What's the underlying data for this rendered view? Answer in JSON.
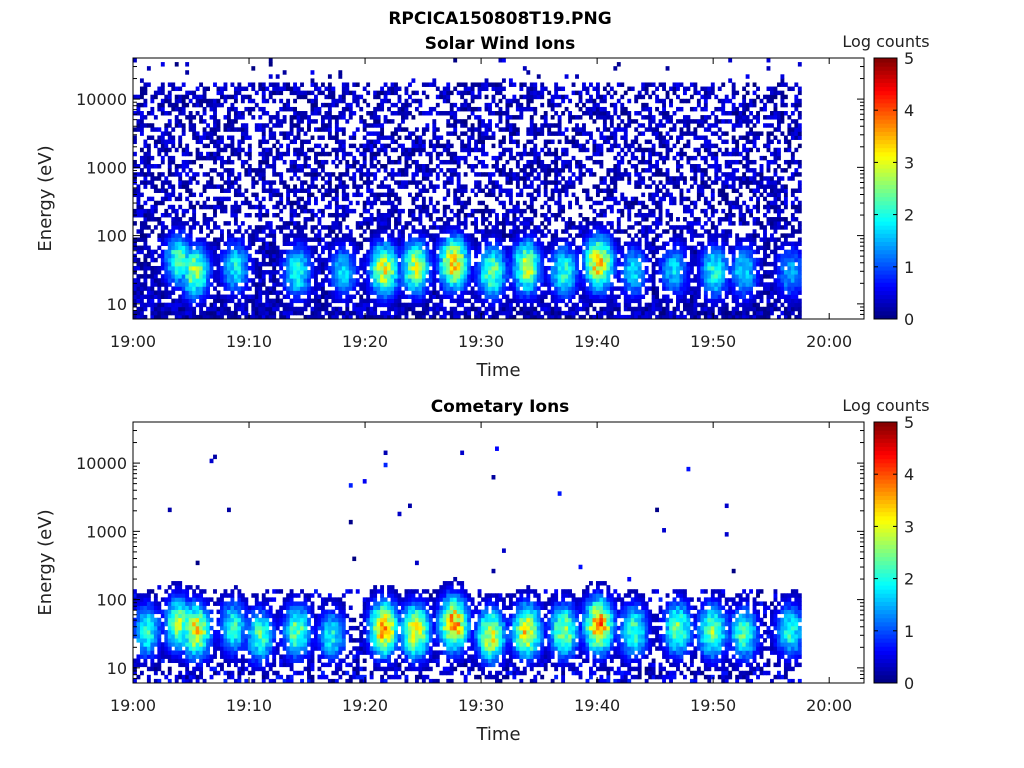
{
  "figure": {
    "title": "RPCICA150808T19.PNG"
  },
  "chart_data": [
    {
      "type": "heatmap",
      "title": "Solar Wind Ions",
      "xlabel": "Time",
      "ylabel": "Energy (eV)",
      "x_ticks": [
        "19:00",
        "19:10",
        "19:20",
        "19:30",
        "19:40",
        "19:50",
        "20:00"
      ],
      "x_range_minutes": [
        0,
        63
      ],
      "data_extent_minutes": [
        0,
        57.3
      ],
      "y_scale": "log",
      "y_ticks": [
        "10",
        "100",
        "1000",
        "10000"
      ],
      "y_range": [
        6,
        40000
      ],
      "colorbar": {
        "label": "Log counts",
        "ticks": [
          "0",
          "1",
          "2",
          "3",
          "4",
          "5"
        ],
        "range": [
          0,
          5
        ]
      },
      "colormap": "jet",
      "background_density": "high",
      "peaks": [
        {
          "t": 3.8,
          "e": 45,
          "v": 2.4
        },
        {
          "t": 5.2,
          "e": 30,
          "v": 2.8
        },
        {
          "t": 8.7,
          "e": 35,
          "v": 2.0
        },
        {
          "t": 14.0,
          "e": 30,
          "v": 2.2
        },
        {
          "t": 18.0,
          "e": 30,
          "v": 1.8
        },
        {
          "t": 21.5,
          "e": 32,
          "v": 3.2
        },
        {
          "t": 24.2,
          "e": 35,
          "v": 3.0
        },
        {
          "t": 27.5,
          "e": 40,
          "v": 3.5
        },
        {
          "t": 30.8,
          "e": 30,
          "v": 2.6
        },
        {
          "t": 33.8,
          "e": 35,
          "v": 3.0
        },
        {
          "t": 37.0,
          "e": 30,
          "v": 2.2
        },
        {
          "t": 40.0,
          "e": 40,
          "v": 3.6
        },
        {
          "t": 43.0,
          "e": 30,
          "v": 1.8
        },
        {
          "t": 46.5,
          "e": 32,
          "v": 1.8
        },
        {
          "t": 50.0,
          "e": 30,
          "v": 2.2
        },
        {
          "t": 52.5,
          "e": 30,
          "v": 1.9
        },
        {
          "t": 56.5,
          "e": 30,
          "v": 1.6
        }
      ]
    },
    {
      "type": "heatmap",
      "title": "Cometary Ions",
      "xlabel": "Time",
      "ylabel": "Energy (eV)",
      "x_ticks": [
        "19:00",
        "19:10",
        "19:20",
        "19:30",
        "19:40",
        "19:50",
        "20:00"
      ],
      "x_range_minutes": [
        0,
        63
      ],
      "data_extent_minutes": [
        0,
        57.3
      ],
      "y_scale": "log",
      "y_ticks": [
        "10",
        "100",
        "1000",
        "10000"
      ],
      "y_range": [
        6,
        40000
      ],
      "colorbar": {
        "label": "Log counts",
        "ticks": [
          "0",
          "1",
          "2",
          "3",
          "4",
          "5"
        ],
        "range": [
          0,
          5
        ]
      },
      "colormap": "jet",
      "background_density": "low",
      "peaks": [
        {
          "t": 1.0,
          "e": 35,
          "v": 2.2
        },
        {
          "t": 3.8,
          "e": 45,
          "v": 2.8
        },
        {
          "t": 5.3,
          "e": 35,
          "v": 3.4
        },
        {
          "t": 8.5,
          "e": 40,
          "v": 2.2
        },
        {
          "t": 10.8,
          "e": 30,
          "v": 2.4
        },
        {
          "t": 14.0,
          "e": 35,
          "v": 2.6
        },
        {
          "t": 17.0,
          "e": 30,
          "v": 2.0
        },
        {
          "t": 21.5,
          "e": 38,
          "v": 3.8
        },
        {
          "t": 24.2,
          "e": 35,
          "v": 3.4
        },
        {
          "t": 27.5,
          "e": 45,
          "v": 3.8
        },
        {
          "t": 30.7,
          "e": 30,
          "v": 3.2
        },
        {
          "t": 33.8,
          "e": 35,
          "v": 3.4
        },
        {
          "t": 37.0,
          "e": 35,
          "v": 2.8
        },
        {
          "t": 40.0,
          "e": 42,
          "v": 3.9
        },
        {
          "t": 43.0,
          "e": 35,
          "v": 2.4
        },
        {
          "t": 46.8,
          "e": 38,
          "v": 2.6
        },
        {
          "t": 49.8,
          "e": 35,
          "v": 2.8
        },
        {
          "t": 52.5,
          "e": 32,
          "v": 2.4
        },
        {
          "t": 56.5,
          "e": 35,
          "v": 2.2
        }
      ]
    }
  ]
}
